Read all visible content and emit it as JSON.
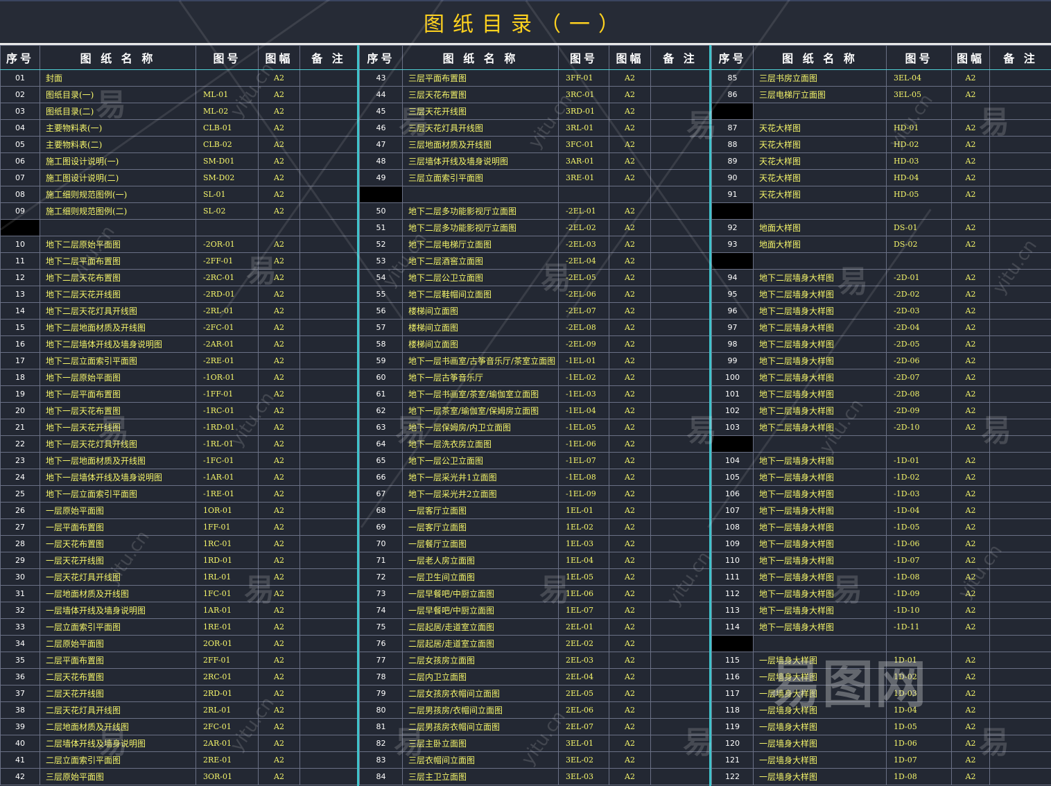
{
  "title": "图纸目录（一）",
  "headers": {
    "no": "序号",
    "name": "图 纸 名 称",
    "code": "图号",
    "size": "图幅",
    "note": "备 注"
  },
  "watermark": {
    "glyph": "易",
    "site": "yitu.cn",
    "logo": "易图网"
  },
  "colors": {
    "background": "#232833",
    "text": "#f5f56a",
    "title": "#ffd21f",
    "separator": "#3fc3cc"
  },
  "columns": [
    {
      "rows": [
        {
          "no": "01",
          "name": "封面",
          "code": "",
          "size": "A2"
        },
        {
          "no": "02",
          "name": "图纸目录(一)",
          "code": "ML-01",
          "size": "A2"
        },
        {
          "no": "03",
          "name": "图纸目录(二)",
          "code": "ML-02",
          "size": "A2"
        },
        {
          "no": "04",
          "name": "主要物料表(一)",
          "code": "CLB-01",
          "size": "A2"
        },
        {
          "no": "05",
          "name": "主要物料表(二)",
          "code": "CLB-02",
          "size": "A2"
        },
        {
          "no": "06",
          "name": "施工图设计说明(一)",
          "code": "SM-D01",
          "size": "A2"
        },
        {
          "no": "07",
          "name": "施工图设计说明(二)",
          "code": "SM-D02",
          "size": "A2"
        },
        {
          "no": "08",
          "name": "施工细则规范图例(一)",
          "code": "SL-01",
          "size": "A2"
        },
        {
          "no": "09",
          "name": "施工细则规范图例(二)",
          "code": "SL-02",
          "size": "A2"
        },
        {
          "no": "",
          "name": "",
          "code": "",
          "size": "",
          "gap": true
        },
        {
          "no": "10",
          "name": "地下二层原始平面图",
          "code": "-2OR-01",
          "size": "A2"
        },
        {
          "no": "11",
          "name": "地下二层平面布置图",
          "code": "-2FF-01",
          "size": "A2"
        },
        {
          "no": "12",
          "name": "地下二层天花布置图",
          "code": "-2RC-01",
          "size": "A2"
        },
        {
          "no": "13",
          "name": "地下二层天花开线图",
          "code": "-2RD-01",
          "size": "A2"
        },
        {
          "no": "14",
          "name": "地下二层天花灯具开线图",
          "code": "-2RL-01",
          "size": "A2"
        },
        {
          "no": "15",
          "name": "地下二层地面材质及开线图",
          "code": "-2FC-01",
          "size": "A2"
        },
        {
          "no": "16",
          "name": "地下二层墙体开线及墙身说明图",
          "code": "-2AR-01",
          "size": "A2"
        },
        {
          "no": "17",
          "name": "地下二层立面索引平面图",
          "code": "-2RE-01",
          "size": "A2"
        },
        {
          "no": "18",
          "name": "地下一层原始平面图",
          "code": "-1OR-01",
          "size": "A2"
        },
        {
          "no": "19",
          "name": "地下一层平面布置图",
          "code": "-1FF-01",
          "size": "A2"
        },
        {
          "no": "20",
          "name": "地下一层天花布置图",
          "code": "-1RC-01",
          "size": "A2"
        },
        {
          "no": "21",
          "name": "地下一层天花开线图",
          "code": "-1RD-01",
          "size": "A2"
        },
        {
          "no": "22",
          "name": "地下一层天花灯具开线图",
          "code": "-1RL-01",
          "size": "A2"
        },
        {
          "no": "23",
          "name": "地下一层地面材质及开线图",
          "code": "-1FC-01",
          "size": "A2"
        },
        {
          "no": "24",
          "name": "地下一层墙体开线及墙身说明图",
          "code": "-1AR-01",
          "size": "A2"
        },
        {
          "no": "25",
          "name": "地下一层立面索引平面图",
          "code": "-1RE-01",
          "size": "A2"
        },
        {
          "no": "26",
          "name": "一层原始平面图",
          "code": "1OR-01",
          "size": "A2"
        },
        {
          "no": "27",
          "name": "一层平面布置图",
          "code": "1FF-01",
          "size": "A2"
        },
        {
          "no": "28",
          "name": "一层天花布置图",
          "code": "1RC-01",
          "size": "A2"
        },
        {
          "no": "29",
          "name": "一层天花开线图",
          "code": "1RD-01",
          "size": "A2"
        },
        {
          "no": "30",
          "name": "一层天花灯具开线图",
          "code": "1RL-01",
          "size": "A2"
        },
        {
          "no": "31",
          "name": "一层地面材质及开线图",
          "code": "1FC-01",
          "size": "A2"
        },
        {
          "no": "32",
          "name": "一层墙体开线及墙身说明图",
          "code": "1AR-01",
          "size": "A2"
        },
        {
          "no": "33",
          "name": "一层立面索引平面图",
          "code": "1RE-01",
          "size": "A2"
        },
        {
          "no": "34",
          "name": "二层原始平面图",
          "code": "2OR-01",
          "size": "A2"
        },
        {
          "no": "35",
          "name": "二层平面布置图",
          "code": "2FF-01",
          "size": "A2"
        },
        {
          "no": "36",
          "name": "二层天花布置图",
          "code": "2RC-01",
          "size": "A2"
        },
        {
          "no": "37",
          "name": "二层天花开线图",
          "code": "2RD-01",
          "size": "A2"
        },
        {
          "no": "38",
          "name": "二层天花灯具开线图",
          "code": "2RL-01",
          "size": "A2"
        },
        {
          "no": "39",
          "name": "二层地面材质及开线图",
          "code": "2FC-01",
          "size": "A2"
        },
        {
          "no": "40",
          "name": "二层墙体开线及墙身说明图",
          "code": "2AR-01",
          "size": "A2"
        },
        {
          "no": "41",
          "name": "二层立面索引平面图",
          "code": "2RE-01",
          "size": "A2"
        },
        {
          "no": "42",
          "name": "三层原始平面图",
          "code": "3OR-01",
          "size": "A2"
        }
      ]
    },
    {
      "rows": [
        {
          "no": "43",
          "name": "三层平面布置图",
          "code": "3FF-01",
          "size": "A2"
        },
        {
          "no": "44",
          "name": "三层天花布置图",
          "code": "3RC-01",
          "size": "A2"
        },
        {
          "no": "45",
          "name": "三层天花开线图",
          "code": "3RD-01",
          "size": "A2"
        },
        {
          "no": "46",
          "name": "三层天花灯具开线图",
          "code": "3RL-01",
          "size": "A2"
        },
        {
          "no": "47",
          "name": "三层地面材质及开线图",
          "code": "3FC-01",
          "size": "A2"
        },
        {
          "no": "48",
          "name": "三层墙体开线及墙身说明图",
          "code": "3AR-01",
          "size": "A2"
        },
        {
          "no": "49",
          "name": "三层立面索引平面图",
          "code": "3RE-01",
          "size": "A2"
        },
        {
          "no": "",
          "name": "",
          "code": "",
          "size": "",
          "gap": true
        },
        {
          "no": "50",
          "name": "地下二层多功能影视厅立面图",
          "code": "-2EL-01",
          "size": "A2"
        },
        {
          "no": "51",
          "name": "地下二层多功能影视厅立面图",
          "code": "-2EL-02",
          "size": "A2"
        },
        {
          "no": "52",
          "name": "地下二层电梯厅立面图",
          "code": "-2EL-03",
          "size": "A2"
        },
        {
          "no": "53",
          "name": "地下二层酒窖立面图",
          "code": "-2EL-04",
          "size": "A2"
        },
        {
          "no": "54",
          "name": "地下二层公卫立面图",
          "code": "-2EL-05",
          "size": "A2"
        },
        {
          "no": "55",
          "name": "地下二层鞋帽间立面图",
          "code": "-2EL-06",
          "size": "A2"
        },
        {
          "no": "56",
          "name": "楼梯间立面图",
          "code": "-2EL-07",
          "size": "A2"
        },
        {
          "no": "57",
          "name": "楼梯间立面图",
          "code": "-2EL-08",
          "size": "A2"
        },
        {
          "no": "58",
          "name": "楼梯间立面图",
          "code": "-2EL-09",
          "size": "A2"
        },
        {
          "no": "59",
          "name": "地下一层书画室/古筝音乐厅/茶室立面图",
          "code": "-1EL-01",
          "size": "A2"
        },
        {
          "no": "60",
          "name": "地下一层古筝音乐厅",
          "code": "-1EL-02",
          "size": "A2"
        },
        {
          "no": "61",
          "name": "地下一层书画室/茶室/瑜伽室立面图",
          "code": "-1EL-03",
          "size": "A2"
        },
        {
          "no": "62",
          "name": "地下一层茶室/瑜伽室/保姆房立面图",
          "code": "-1EL-04",
          "size": "A2"
        },
        {
          "no": "63",
          "name": "地下一层保姆房/内卫立面图",
          "code": "-1EL-05",
          "size": "A2"
        },
        {
          "no": "64",
          "name": "地下一层洗衣房立面图",
          "code": "-1EL-06",
          "size": "A2"
        },
        {
          "no": "65",
          "name": "地下一层公卫立面图",
          "code": "-1EL-07",
          "size": "A2"
        },
        {
          "no": "66",
          "name": "地下一层采光井1立面图",
          "code": "-1EL-08",
          "size": "A2"
        },
        {
          "no": "67",
          "name": "地下一层采光井2立面图",
          "code": "-1EL-09",
          "size": "A2"
        },
        {
          "no": "68",
          "name": "一层客厅立面图",
          "code": "1EL-01",
          "size": "A2"
        },
        {
          "no": "69",
          "name": "一层客厅立面图",
          "code": "1EL-02",
          "size": "A2"
        },
        {
          "no": "70",
          "name": "一层餐厅立面图",
          "code": "1EL-03",
          "size": "A2"
        },
        {
          "no": "71",
          "name": "一层老人房立面图",
          "code": "1EL-04",
          "size": "A2"
        },
        {
          "no": "72",
          "name": "一层卫生间立面图",
          "code": "1EL-05",
          "size": "A2"
        },
        {
          "no": "73",
          "name": "一层早餐吧/中厨立面图",
          "code": "1EL-06",
          "size": "A2"
        },
        {
          "no": "74",
          "name": "一层早餐吧/中厨立面图",
          "code": "1EL-07",
          "size": "A2"
        },
        {
          "no": "75",
          "name": "二层起居/走道室立面图",
          "code": "2EL-01",
          "size": "A2"
        },
        {
          "no": "76",
          "name": "二层起居/走道室立面图",
          "code": "2EL-02",
          "size": "A2"
        },
        {
          "no": "77",
          "name": "二层女孩房立面图",
          "code": "2EL-03",
          "size": "A2"
        },
        {
          "no": "78",
          "name": "二层内卫立面图",
          "code": "2EL-04",
          "size": "A2"
        },
        {
          "no": "79",
          "name": "二层女孩房衣帽间立面图",
          "code": "2EL-05",
          "size": "A2"
        },
        {
          "no": "80",
          "name": "二层男孩房/衣帽间立面图",
          "code": "2EL-06",
          "size": "A2"
        },
        {
          "no": "81",
          "name": "二层男孩房衣帽间立面图",
          "code": "2EL-07",
          "size": "A2"
        },
        {
          "no": "82",
          "name": "三层主卧立面图",
          "code": "3EL-01",
          "size": "A2"
        },
        {
          "no": "83",
          "name": "三层衣帽间立面图",
          "code": "3EL-02",
          "size": "A2"
        },
        {
          "no": "84",
          "name": "三层主卫立面图",
          "code": "3EL-03",
          "size": "A2"
        }
      ]
    },
    {
      "rows": [
        {
          "no": "85",
          "name": "三层书房立面图",
          "code": "3EL-04",
          "size": "A2"
        },
        {
          "no": "86",
          "name": "三层电梯厅立面图",
          "code": "3EL-05",
          "size": "A2"
        },
        {
          "no": "",
          "name": "",
          "code": "",
          "size": "",
          "gap": true
        },
        {
          "no": "87",
          "name": "天花大样图",
          "code": "HD-01",
          "size": "A2"
        },
        {
          "no": "88",
          "name": "天花大样图",
          "code": "HD-02",
          "size": "A2"
        },
        {
          "no": "89",
          "name": "天花大样图",
          "code": "HD-03",
          "size": "A2"
        },
        {
          "no": "90",
          "name": "天花大样图",
          "code": "HD-04",
          "size": "A2"
        },
        {
          "no": "91",
          "name": "天花大样图",
          "code": "HD-05",
          "size": "A2"
        },
        {
          "no": "",
          "name": "",
          "code": "",
          "size": "",
          "gap": true
        },
        {
          "no": "92",
          "name": "地面大样图",
          "code": "DS-01",
          "size": "A2"
        },
        {
          "no": "93",
          "name": "地面大样图",
          "code": "DS-02",
          "size": "A2"
        },
        {
          "no": "",
          "name": "",
          "code": "",
          "size": "",
          "gap": true
        },
        {
          "no": "94",
          "name": "地下二层墙身大样图",
          "code": "-2D-01",
          "size": "A2"
        },
        {
          "no": "95",
          "name": "地下二层墙身大样图",
          "code": "-2D-02",
          "size": "A2"
        },
        {
          "no": "96",
          "name": "地下二层墙身大样图",
          "code": "-2D-03",
          "size": "A2"
        },
        {
          "no": "97",
          "name": "地下二层墙身大样图",
          "code": "-2D-04",
          "size": "A2"
        },
        {
          "no": "98",
          "name": "地下二层墙身大样图",
          "code": "-2D-05",
          "size": "A2"
        },
        {
          "no": "99",
          "name": "地下二层墙身大样图",
          "code": "-2D-06",
          "size": "A2"
        },
        {
          "no": "100",
          "name": "地下二层墙身大样图",
          "code": "-2D-07",
          "size": "A2"
        },
        {
          "no": "101",
          "name": "地下二层墙身大样图",
          "code": "-2D-08",
          "size": "A2"
        },
        {
          "no": "102",
          "name": "地下二层墙身大样图",
          "code": "-2D-09",
          "size": "A2"
        },
        {
          "no": "103",
          "name": "地下二层墙身大样图",
          "code": "-2D-10",
          "size": "A2"
        },
        {
          "no": "",
          "name": "",
          "code": "",
          "size": "",
          "gap": true
        },
        {
          "no": "104",
          "name": "地下一层墙身大样图",
          "code": "-1D-01",
          "size": "A2"
        },
        {
          "no": "105",
          "name": "地下一层墙身大样图",
          "code": "-1D-02",
          "size": "A2"
        },
        {
          "no": "106",
          "name": "地下一层墙身大样图",
          "code": "-1D-03",
          "size": "A2"
        },
        {
          "no": "107",
          "name": "地下一层墙身大样图",
          "code": "-1D-04",
          "size": "A2"
        },
        {
          "no": "108",
          "name": "地下一层墙身大样图",
          "code": "-1D-05",
          "size": "A2"
        },
        {
          "no": "109",
          "name": "地下一层墙身大样图",
          "code": "-1D-06",
          "size": "A2"
        },
        {
          "no": "110",
          "name": "地下一层墙身大样图",
          "code": "-1D-07",
          "size": "A2"
        },
        {
          "no": "111",
          "name": "地下一层墙身大样图",
          "code": "-1D-08",
          "size": "A2"
        },
        {
          "no": "112",
          "name": "地下一层墙身大样图",
          "code": "-1D-09",
          "size": "A2"
        },
        {
          "no": "113",
          "name": "地下一层墙身大样图",
          "code": "-1D-10",
          "size": "A2"
        },
        {
          "no": "114",
          "name": "地下一层墙身大样图",
          "code": "-1D-11",
          "size": "A2"
        },
        {
          "no": "",
          "name": "",
          "code": "",
          "size": "",
          "gap": true
        },
        {
          "no": "115",
          "name": "一层墙身大样图",
          "code": "1D-01",
          "size": "A2"
        },
        {
          "no": "116",
          "name": "一层墙身大样图",
          "code": "1D-02",
          "size": "A2"
        },
        {
          "no": "117",
          "name": "一层墙身大样图",
          "code": "1D-03",
          "size": "A2"
        },
        {
          "no": "118",
          "name": "一层墙身大样图",
          "code": "1D-04",
          "size": "A2"
        },
        {
          "no": "119",
          "name": "一层墙身大样图",
          "code": "1D-05",
          "size": "A2"
        },
        {
          "no": "120",
          "name": "一层墙身大样图",
          "code": "1D-06",
          "size": "A2"
        },
        {
          "no": "121",
          "name": "一层墙身大样图",
          "code": "1D-07",
          "size": "A2"
        },
        {
          "no": "122",
          "name": "一层墙身大样图",
          "code": "1D-08",
          "size": "A2"
        }
      ]
    }
  ]
}
